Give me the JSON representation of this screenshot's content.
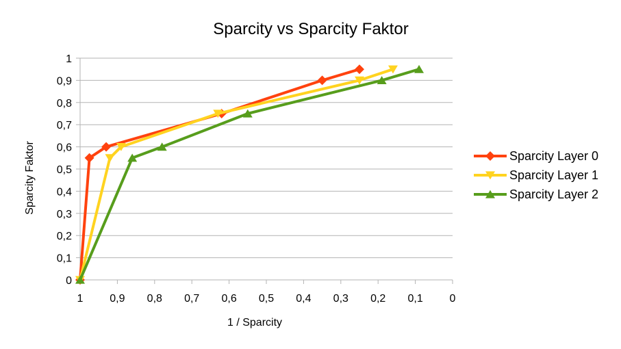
{
  "chart_data": {
    "type": "line",
    "title": "Sparcity vs Sparcity Faktor",
    "xlabel": "1 / Sparcity",
    "ylabel": "Sparcity Faktor",
    "xlim": [
      1,
      0
    ],
    "x_reversed": true,
    "ylim": [
      0,
      1
    ],
    "x_ticks": [
      "1",
      "0,9",
      "0,8",
      "0,7",
      "0,6",
      "0,5",
      "0,4",
      "0,3",
      "0,2",
      "0,1",
      "0"
    ],
    "y_ticks": [
      "0",
      "0,1",
      "0,2",
      "0,3",
      "0,4",
      "0,5",
      "0,6",
      "0,7",
      "0,8",
      "0,9",
      "1"
    ],
    "grid": "horizontal",
    "legend": "right",
    "series": [
      {
        "name": "Sparcity Layer 0",
        "color": "#ff420e",
        "marker": "diamond",
        "x": [
          1,
          0.975,
          0.93,
          0.62,
          0.35,
          0.25
        ],
        "y": [
          0,
          0.55,
          0.6,
          0.75,
          0.9,
          0.95
        ]
      },
      {
        "name": "Sparcity Layer 1",
        "color": "#ffd320",
        "marker": "triangle-down",
        "x": [
          1,
          0.92,
          0.89,
          0.63,
          0.25,
          0.16
        ],
        "y": [
          0,
          0.55,
          0.6,
          0.75,
          0.9,
          0.95
        ]
      },
      {
        "name": "Sparcity Layer 2",
        "color": "#579d1c",
        "marker": "triangle-up",
        "x": [
          1,
          0.86,
          0.78,
          0.55,
          0.19,
          0.09
        ],
        "y": [
          0,
          0.55,
          0.6,
          0.75,
          0.9,
          0.95
        ]
      }
    ]
  }
}
